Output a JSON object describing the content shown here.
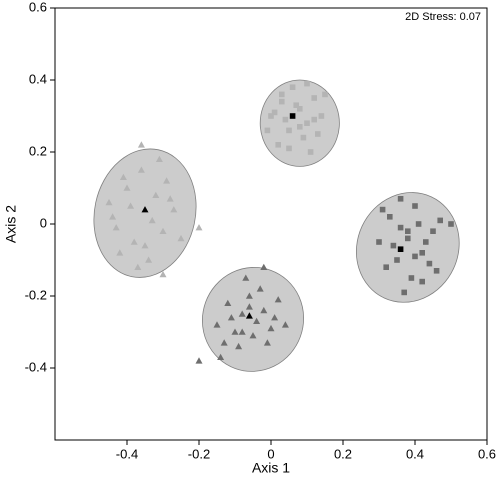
{
  "chart_data": {
    "type": "scatter",
    "xlabel": "Axis 1",
    "ylabel": "Axis 2",
    "annotation": "2D Stress: 0.07",
    "xlim": [
      -0.6,
      0.6
    ],
    "ylim": [
      -0.6,
      0.6
    ],
    "xticks": [
      -0.4,
      -0.2,
      0,
      0.2,
      0.4,
      0.6
    ],
    "yticks": [
      -0.4,
      -0.2,
      0,
      0.2,
      0.4,
      0.6
    ],
    "series": [
      {
        "color": "#b4b4b4",
        "marker": "triangle",
        "ellipse_color": "#cccccc",
        "x": [
          -0.44,
          -0.4,
          -0.38,
          -0.32,
          -0.3,
          -0.27,
          -0.36,
          -0.42,
          -0.34,
          -0.29,
          -0.39,
          -0.33,
          -0.25,
          -0.45,
          -0.37,
          -0.31,
          -0.41,
          -0.28,
          -0.35,
          -0.43,
          -0.2,
          -0.36,
          -0.3
        ],
        "y": [
          0.02,
          0.1,
          -0.05,
          0.08,
          -0.02,
          0.04,
          0.15,
          -0.08,
          -0.1,
          0.12,
          0.05,
          0.01,
          -0.04,
          0.06,
          -0.12,
          0.18,
          0.13,
          0.07,
          -0.06,
          -0.01,
          -0.01,
          0.22,
          -0.14
        ],
        "centroid": [
          -0.35,
          0.04
        ],
        "ellipse": {
          "cx": -0.35,
          "cy": 0.03,
          "rx": 0.14,
          "ry": 0.18,
          "angle": 12
        }
      },
      {
        "color": "#b4b4b4",
        "marker": "square",
        "ellipse_color": "#cccccc",
        "x": [
          0.0,
          0.03,
          0.05,
          0.08,
          0.1,
          0.12,
          0.14,
          0.02,
          0.06,
          0.09,
          0.11,
          0.04,
          0.07,
          0.13,
          0.15,
          0.01,
          0.08,
          0.1,
          0.05,
          -0.01,
          0.12,
          0.03
        ],
        "y": [
          0.3,
          0.34,
          0.26,
          0.32,
          0.28,
          0.35,
          0.3,
          0.22,
          0.38,
          0.24,
          0.2,
          0.29,
          0.33,
          0.25,
          0.36,
          0.31,
          0.27,
          0.39,
          0.21,
          0.26,
          0.29,
          0.36
        ],
        "centroid": [
          0.06,
          0.3
        ],
        "ellipse": {
          "cx": 0.08,
          "cy": 0.28,
          "rx": 0.11,
          "ry": 0.12,
          "angle": 0
        }
      },
      {
        "color": "#6e6e6e",
        "marker": "square",
        "ellipse_color": "#cccccc",
        "x": [
          0.3,
          0.33,
          0.35,
          0.38,
          0.4,
          0.42,
          0.45,
          0.32,
          0.36,
          0.39,
          0.41,
          0.44,
          0.47,
          0.34,
          0.37,
          0.43,
          0.31,
          0.4,
          0.46,
          0.36,
          0.38,
          0.5,
          0.42
        ],
        "y": [
          -0.05,
          0.02,
          -0.1,
          -0.04,
          0.05,
          -0.08,
          -0.02,
          -0.12,
          -0.01,
          -0.15,
          0.0,
          -0.11,
          0.01,
          -0.06,
          -0.19,
          -0.05,
          0.04,
          -0.09,
          -0.13,
          0.07,
          -0.02,
          0.0,
          -0.16
        ],
        "centroid": [
          0.36,
          -0.07
        ],
        "ellipse": {
          "cx": 0.38,
          "cy": -0.065,
          "rx": 0.14,
          "ry": 0.155,
          "angle": 25
        }
      },
      {
        "color": "#6e6e6e",
        "marker": "triangle",
        "ellipse_color": "#cccccc",
        "x": [
          -0.15,
          -0.12,
          -0.1,
          -0.08,
          -0.06,
          -0.04,
          -0.02,
          0.0,
          0.02,
          -0.13,
          -0.09,
          -0.05,
          -0.03,
          0.01,
          0.04,
          -0.11,
          -0.07,
          -0.01,
          -0.14,
          -0.06,
          -0.2,
          -0.02,
          -0.08
        ],
        "y": [
          -0.28,
          -0.22,
          -0.3,
          -0.25,
          -0.2,
          -0.27,
          -0.24,
          -0.29,
          -0.21,
          -0.33,
          -0.34,
          -0.31,
          -0.18,
          -0.26,
          -0.28,
          -0.26,
          -0.15,
          -0.33,
          -0.37,
          -0.23,
          -0.38,
          -0.12,
          -0.3
        ],
        "centroid": [
          -0.06,
          -0.255
        ],
        "ellipse": {
          "cx": -0.05,
          "cy": -0.265,
          "rx": 0.14,
          "ry": 0.145,
          "angle": 20
        }
      }
    ]
  }
}
